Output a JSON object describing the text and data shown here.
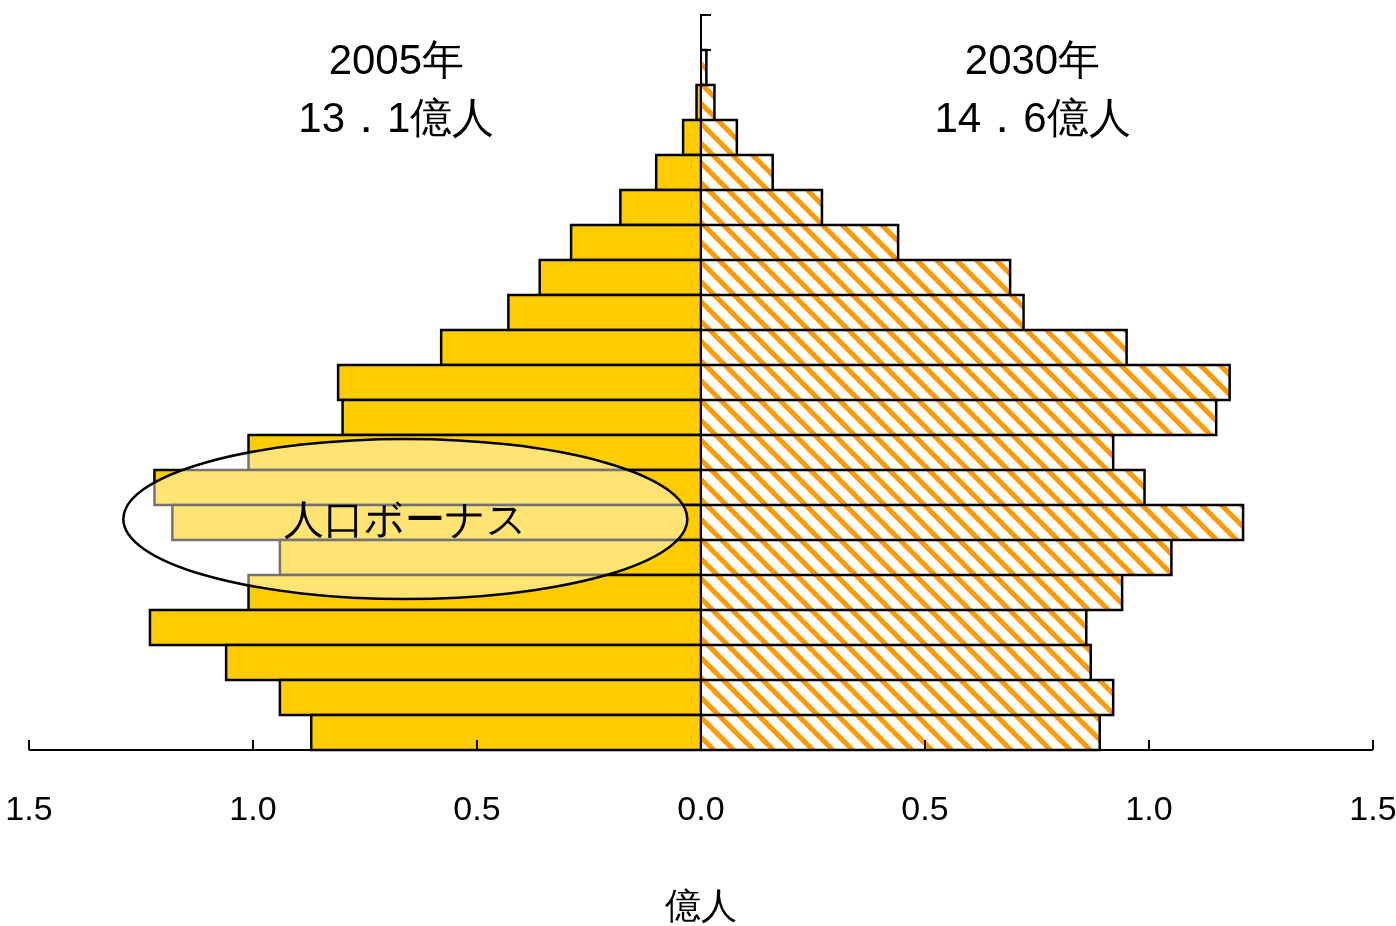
{
  "chart_data": {
    "type": "bar",
    "orientation": "horizontal",
    "stacked": true,
    "xlabel": "億人",
    "categories": [
      null,
      null,
      null,
      null,
      null,
      null,
      null,
      null,
      null,
      null,
      null,
      null,
      null,
      null,
      null,
      null,
      null,
      null,
      null,
      null,
      null
    ],
    "series": [
      {
        "color": "#ffcc00",
        "values": [
          null,
          null,
          -0.01,
          -0.04,
          -0.1,
          -0.18,
          -0.29,
          -0.36,
          -0.43,
          -0.58,
          -0.81,
          -0.8,
          -1.01,
          -1.22,
          -1.18,
          -0.94,
          -1.01,
          -1.23,
          -1.06,
          -0.94,
          -0.87
        ]
      },
      {
        "color": "#ff9900",
        "values": [
          null,
          0.012,
          0.03,
          0.08,
          0.16,
          0.27,
          0.44,
          0.69,
          0.72,
          0.95,
          1.18,
          1.15,
          0.92,
          0.99,
          1.21,
          1.05,
          0.94,
          0.86,
          0.87,
          0.92,
          0.89
        ]
      }
    ],
    "annotations": [
      "2005年\n13．1億人",
      "2030年\n14．6億人",
      "人口ボーナス"
    ],
    "ref_lines": [
      {
        "axis": "x",
        "value": 0
      }
    ],
    "xlim": [
      -1.5,
      1.5
    ],
    "xticks": [
      {
        "value": -1.5,
        "label": "1.5"
      },
      {
        "value": -1.0,
        "label": "1.0"
      },
      {
        "value": -0.5,
        "label": "0.5"
      },
      {
        "value": 0,
        "label": "0.0"
      },
      0.5,
      {
        "value": 1.0,
        "label": "1.0"
      },
      1.5
    ],
    "grid": false,
    "legend": false
  }
}
